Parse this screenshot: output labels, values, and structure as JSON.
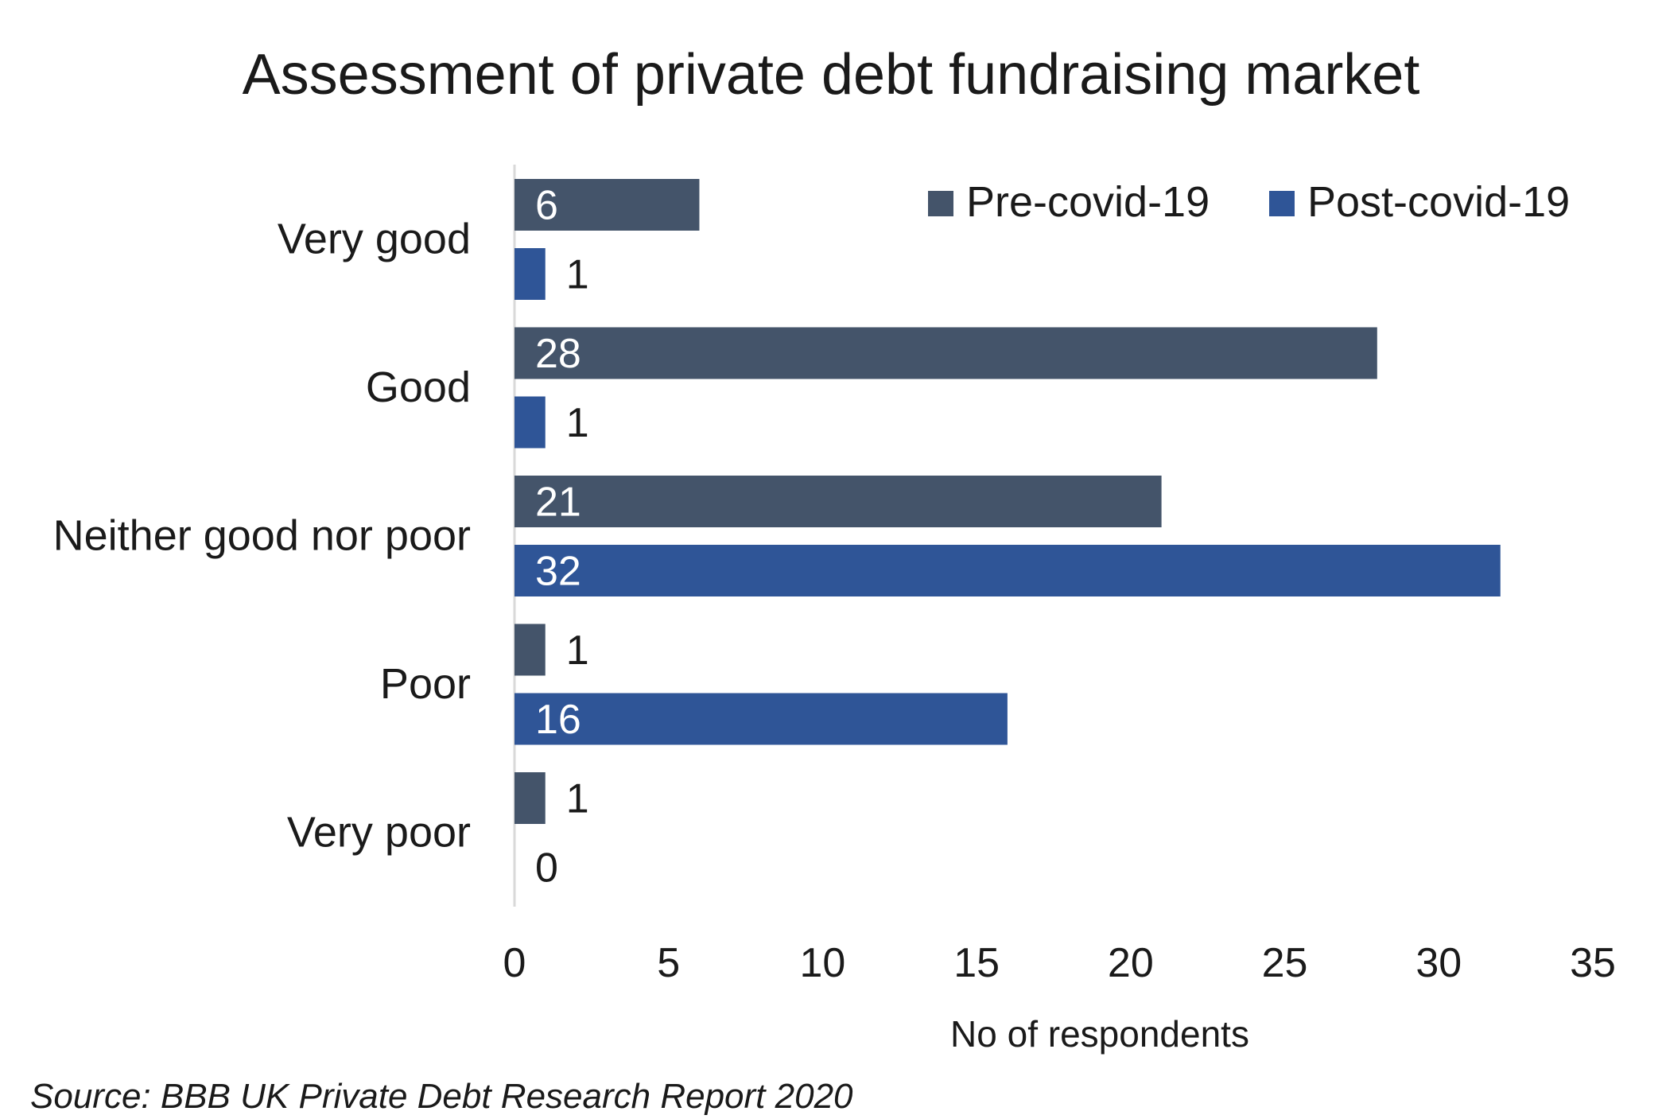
{
  "chart_data": {
    "type": "bar",
    "orientation": "horizontal",
    "title": "Assessment of private debt fundraising market",
    "categories": [
      "Very good",
      "Good",
      "Neither good nor poor",
      "Poor",
      "Very poor"
    ],
    "series": [
      {
        "name": "Pre-covid-19",
        "color": "#44546a",
        "values": [
          6,
          28,
          21,
          1,
          1
        ]
      },
      {
        "name": "Post-covid-19",
        "color": "#2f5597",
        "values": [
          1,
          1,
          32,
          16,
          0
        ]
      }
    ],
    "xlabel": "No of respondents",
    "ylabel": "",
    "xlim": [
      0,
      35
    ],
    "xticks": [
      0,
      5,
      10,
      15,
      20,
      25,
      30,
      35
    ],
    "grid": false,
    "legend_position": "top-right",
    "data_labels": true
  },
  "source": "Source: BBB UK Private Debt Research Report 2020"
}
